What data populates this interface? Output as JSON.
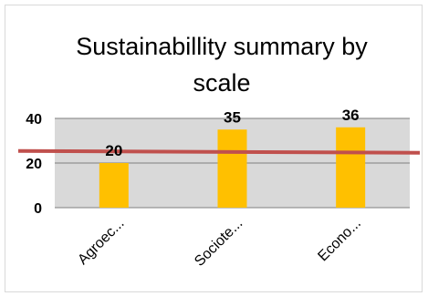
{
  "chart_data": {
    "type": "bar",
    "title_line1": "Sustainabillity summary by",
    "title_line2": "scale",
    "categories": [
      "Agroec...",
      "Sociote...",
      "Econo..."
    ],
    "values": [
      20,
      35,
      36
    ],
    "data_labels": [
      "20",
      "35",
      "36"
    ],
    "ylim": [
      0,
      40
    ],
    "yticks": [
      "0",
      "20",
      "40"
    ],
    "threshold": 25,
    "grid": true,
    "legend": "none",
    "colors": {
      "bar": "#ffc000",
      "plot_area": "#d9d9d9",
      "threshold_line": "#c0504d",
      "gridline": "#7f7f7f"
    }
  }
}
